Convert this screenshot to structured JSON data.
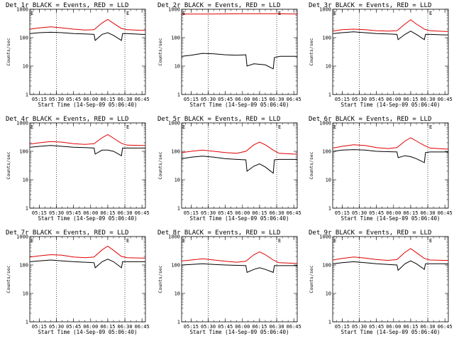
{
  "figure": {
    "background": "#ffffff",
    "series_colors": {
      "events": "#000000",
      "lld": "#e00000"
    }
  },
  "chart_data": [
    {
      "type": "line",
      "title": "Det 1r BLACK = Events, RED = LLD",
      "xlabel": "Start Time (14-Sep-09 05:06:40)",
      "ylabel": "Counts/sec",
      "yscale": "log",
      "ylim": [
        1,
        1000
      ],
      "yticks": [
        "1",
        "10",
        "100",
        "1000"
      ],
      "xticks": [
        "05:15",
        "05:30",
        "05:45",
        "06:00",
        "06:15",
        "06:30",
        "06:45"
      ],
      "markers": [
        "05:30",
        "06:30"
      ],
      "corner_labels": [
        "E",
        "E"
      ],
      "series": [
        {
          "name": "Events",
          "color": "#000000",
          "x": [
            "05:07",
            "05:15",
            "05:25",
            "05:35",
            "05:45",
            "05:55",
            "06:03",
            "06:04",
            "06:10",
            "06:15",
            "06:20",
            "06:27",
            "06:28",
            "06:32",
            "06:45",
            "06:48"
          ],
          "y": [
            140,
            150,
            155,
            150,
            140,
            135,
            130,
            80,
            130,
            150,
            120,
            80,
            140,
            140,
            130,
            130
          ]
        },
        {
          "name": "LLD",
          "color": "#e00000",
          "x": [
            "05:07",
            "05:15",
            "05:25",
            "05:35",
            "05:45",
            "05:55",
            "06:03",
            "06:10",
            "06:15",
            "06:20",
            "06:27",
            "06:32",
            "06:45",
            "06:48"
          ],
          "y": [
            200,
            220,
            240,
            220,
            200,
            185,
            190,
            330,
            440,
            320,
            210,
            190,
            180,
            180
          ]
        }
      ]
    },
    {
      "type": "line",
      "title": "Det 2r BLACK = Events, RED = LLD",
      "xlabel": "Start Time (14-Sep-09 05:06:40)",
      "ylabel": "Counts/sec",
      "yscale": "log",
      "ylim": [
        1,
        1000
      ],
      "yticks": [
        "1",
        "10",
        "100",
        "1000"
      ],
      "xticks": [
        "05:15",
        "05:30",
        "05:45",
        "06:00",
        "06:15",
        "06:30",
        "06:45"
      ],
      "markers": [
        "05:30",
        "06:30"
      ],
      "corner_labels": [
        "E",
        "E"
      ],
      "series": [
        {
          "name": "Events",
          "color": "#000000",
          "x": [
            "05:07",
            "05:15",
            "05:25",
            "05:35",
            "05:45",
            "05:55",
            "06:03",
            "06:04",
            "06:10",
            "06:20",
            "06:27",
            "06:28",
            "06:33",
            "06:45",
            "06:48"
          ],
          "y": [
            22,
            24,
            28,
            27,
            25,
            24,
            25,
            10,
            12,
            11,
            8,
            20,
            22,
            22,
            22
          ]
        },
        {
          "name": "LLD",
          "color": "#e00000",
          "x": [
            "05:07",
            "05:30",
            "06:00",
            "06:30",
            "06:48"
          ],
          "y": [
            680,
            680,
            690,
            690,
            680
          ]
        }
      ]
    },
    {
      "type": "line",
      "title": "Det 3r BLACK = Events, RED = LLD",
      "xlabel": "Start Time (14-Sep-09 05:06:40)",
      "ylabel": "Counts/sec",
      "yscale": "log",
      "ylim": [
        1,
        1000
      ],
      "yticks": [
        "1",
        "10",
        "100",
        "1000"
      ],
      "xticks": [
        "05:15",
        "05:30",
        "05:45",
        "06:00",
        "06:15",
        "06:30",
        "06:45"
      ],
      "markers": [
        "05:30",
        "06:30"
      ],
      "corner_labels": [
        "E",
        "E"
      ],
      "series": [
        {
          "name": "Events",
          "color": "#000000",
          "x": [
            "05:07",
            "05:15",
            "05:25",
            "05:35",
            "05:45",
            "05:55",
            "06:03",
            "06:04",
            "06:10",
            "06:15",
            "06:20",
            "06:27",
            "06:28",
            "06:32",
            "06:45",
            "06:48"
          ],
          "y": [
            140,
            150,
            160,
            150,
            140,
            135,
            130,
            85,
            130,
            170,
            130,
            85,
            130,
            130,
            125,
            125
          ]
        },
        {
          "name": "LLD",
          "color": "#e00000",
          "x": [
            "05:07",
            "05:15",
            "05:25",
            "05:35",
            "05:45",
            "05:55",
            "06:03",
            "06:10",
            "06:15",
            "06:20",
            "06:27",
            "06:32",
            "06:45",
            "06:48"
          ],
          "y": [
            170,
            190,
            200,
            190,
            175,
            170,
            175,
            300,
            430,
            300,
            200,
            175,
            165,
            165
          ]
        }
      ]
    },
    {
      "type": "line",
      "title": "Det 4r BLACK = Events, RED = LLD",
      "xlabel": "Start Time (14-Sep-09 05:06:40)",
      "ylabel": "Counts/sec",
      "yscale": "log",
      "ylim": [
        1,
        1000
      ],
      "yticks": [
        "1",
        "10",
        "100",
        "1000"
      ],
      "xticks": [
        "05:15",
        "05:30",
        "05:45",
        "06:00",
        "06:15",
        "06:30",
        "06:45"
      ],
      "markers": [
        "05:30",
        "06:30"
      ],
      "corner_labels": [
        "E",
        "E"
      ],
      "series": [
        {
          "name": "Events",
          "color": "#000000",
          "x": [
            "05:07",
            "05:15",
            "05:25",
            "05:35",
            "05:45",
            "05:55",
            "06:03",
            "06:04",
            "06:10",
            "06:15",
            "06:20",
            "06:27",
            "06:28",
            "06:32",
            "06:45",
            "06:48"
          ],
          "y": [
            140,
            150,
            160,
            150,
            140,
            135,
            130,
            80,
            110,
            110,
            100,
            70,
            130,
            130,
            130,
            130
          ]
        },
        {
          "name": "LLD",
          "color": "#e00000",
          "x": [
            "05:07",
            "05:15",
            "05:25",
            "05:35",
            "05:45",
            "05:55",
            "06:03",
            "06:10",
            "06:15",
            "06:20",
            "06:27",
            "06:32",
            "06:45",
            "06:48"
          ],
          "y": [
            180,
            200,
            220,
            210,
            185,
            175,
            185,
            300,
            390,
            290,
            190,
            165,
            160,
            160
          ]
        }
      ]
    },
    {
      "type": "line",
      "title": "Det 5r BLACK = Events, RED = LLD",
      "xlabel": "Start Time (14-Sep-09 05:06:40)",
      "ylabel": "Counts/sec",
      "yscale": "log",
      "ylim": [
        1,
        1000
      ],
      "yticks": [
        "1",
        "10",
        "100",
        "1000"
      ],
      "xticks": [
        "05:15",
        "05:30",
        "05:45",
        "06:00",
        "06:15",
        "06:30",
        "06:45"
      ],
      "markers": [
        "05:30",
        "06:30"
      ],
      "corner_labels": [
        "E",
        "E"
      ],
      "series": [
        {
          "name": "Events",
          "color": "#000000",
          "x": [
            "05:07",
            "05:15",
            "05:25",
            "05:35",
            "05:45",
            "05:55",
            "06:03",
            "06:04",
            "06:10",
            "06:15",
            "06:20",
            "06:27",
            "06:28",
            "06:32",
            "06:45",
            "06:48"
          ],
          "y": [
            55,
            62,
            68,
            62,
            55,
            52,
            50,
            20,
            30,
            36,
            28,
            17,
            50,
            52,
            52,
            52
          ]
        },
        {
          "name": "LLD",
          "color": "#e00000",
          "x": [
            "05:07",
            "05:15",
            "05:25",
            "05:35",
            "05:45",
            "05:55",
            "06:03",
            "06:10",
            "06:15",
            "06:20",
            "06:27",
            "06:32",
            "06:45",
            "06:48"
          ],
          "y": [
            90,
            100,
            110,
            100,
            90,
            85,
            100,
            170,
            210,
            170,
            110,
            85,
            80,
            80
          ]
        }
      ]
    },
    {
      "type": "line",
      "title": "Det 6r BLACK = Events, RED = LLD",
      "xlabel": "Start Time (14-Sep-09 05:06:40)",
      "ylabel": "Counts/sec",
      "yscale": "log",
      "ylim": [
        1,
        1000
      ],
      "yticks": [
        "1",
        "10",
        "100",
        "1000"
      ],
      "xticks": [
        "05:15",
        "05:30",
        "05:45",
        "06:00",
        "06:15",
        "06:30",
        "06:45"
      ],
      "markers": [
        "05:30",
        "06:30"
      ],
      "corner_labels": [
        "E",
        "E"
      ],
      "series": [
        {
          "name": "Events",
          "color": "#000000",
          "x": [
            "05:07",
            "05:15",
            "05:25",
            "05:35",
            "05:45",
            "05:55",
            "06:03",
            "06:04",
            "06:10",
            "06:15",
            "06:20",
            "06:27",
            "06:28",
            "06:32",
            "06:45",
            "06:48"
          ],
          "y": [
            100,
            110,
            115,
            110,
            100,
            97,
            95,
            60,
            70,
            65,
            55,
            40,
            90,
            95,
            95,
            95
          ]
        },
        {
          "name": "LLD",
          "color": "#e00000",
          "x": [
            "05:07",
            "05:15",
            "05:25",
            "05:35",
            "05:45",
            "05:55",
            "06:03",
            "06:10",
            "06:15",
            "06:20",
            "06:27",
            "06:32",
            "06:45",
            "06:48"
          ],
          "y": [
            130,
            150,
            170,
            160,
            135,
            125,
            135,
            230,
            300,
            230,
            160,
            130,
            120,
            120
          ]
        }
      ]
    },
    {
      "type": "line",
      "title": "Det 7r BLACK = Events, RED = LLD",
      "xlabel": "Start Time (14-Sep-09 05:06:40)",
      "ylabel": "Counts/sec",
      "yscale": "log",
      "ylim": [
        1,
        1000
      ],
      "yticks": [
        "1",
        "10",
        "100",
        "1000"
      ],
      "xticks": [
        "05:15",
        "05:30",
        "05:45",
        "06:00",
        "06:15",
        "06:30",
        "06:45"
      ],
      "markers": [
        "05:30",
        "06:30"
      ],
      "corner_labels": [
        "E",
        "E"
      ],
      "series": [
        {
          "name": "Events",
          "color": "#000000",
          "x": [
            "05:07",
            "05:15",
            "05:25",
            "05:35",
            "05:45",
            "05:55",
            "06:03",
            "06:04",
            "06:10",
            "06:15",
            "06:20",
            "06:27",
            "06:28",
            "06:32",
            "06:45",
            "06:48"
          ],
          "y": [
            130,
            140,
            150,
            140,
            130,
            125,
            120,
            80,
            130,
            160,
            130,
            80,
            130,
            130,
            130,
            130
          ]
        },
        {
          "name": "LLD",
          "color": "#e00000",
          "x": [
            "05:07",
            "05:15",
            "05:25",
            "05:35",
            "05:45",
            "05:55",
            "06:03",
            "06:10",
            "06:15",
            "06:20",
            "06:27",
            "06:32",
            "06:45",
            "06:48"
          ],
          "y": [
            190,
            210,
            230,
            220,
            190,
            180,
            190,
            340,
            460,
            330,
            200,
            180,
            175,
            175
          ]
        }
      ]
    },
    {
      "type": "line",
      "title": "Det 8r BLACK = Events, RED = LLD",
      "xlabel": "Start Time (14-Sep-09 05:06:40)",
      "ylabel": "Counts/sec",
      "yscale": "log",
      "ylim": [
        1,
        1000
      ],
      "yticks": [
        "1",
        "10",
        "100",
        "1000"
      ],
      "xticks": [
        "05:15",
        "05:30",
        "05:45",
        "06:00",
        "06:15",
        "06:30",
        "06:45"
      ],
      "markers": [
        "05:30",
        "06:30"
      ],
      "corner_labels": [
        "E",
        "E"
      ],
      "series": [
        {
          "name": "Events",
          "color": "#000000",
          "x": [
            "05:07",
            "05:15",
            "05:25",
            "05:35",
            "05:45",
            "05:55",
            "06:03",
            "06:04",
            "06:10",
            "06:15",
            "06:20",
            "06:27",
            "06:28",
            "06:32",
            "06:45",
            "06:48"
          ],
          "y": [
            100,
            105,
            110,
            105,
            100,
            97,
            95,
            55,
            70,
            80,
            70,
            55,
            95,
            95,
            95,
            95
          ]
        },
        {
          "name": "LLD",
          "color": "#e00000",
          "x": [
            "05:07",
            "05:15",
            "05:25",
            "05:35",
            "05:45",
            "05:55",
            "06:03",
            "06:10",
            "06:15",
            "06:20",
            "06:27",
            "06:32",
            "06:45",
            "06:48"
          ],
          "y": [
            140,
            150,
            165,
            150,
            135,
            125,
            135,
            230,
            290,
            230,
            150,
            120,
            115,
            115
          ]
        }
      ]
    },
    {
      "type": "line",
      "title": "Det 9r BLACK = Events, RED = LLD",
      "xlabel": "Start Time (14-Sep-09 05:06:40)",
      "ylabel": "Counts/sec",
      "yscale": "log",
      "ylim": [
        1,
        1000
      ],
      "yticks": [
        "1",
        "10",
        "100",
        "1000"
      ],
      "xticks": [
        "05:15",
        "05:30",
        "05:45",
        "06:00",
        "06:15",
        "06:30",
        "06:45"
      ],
      "markers": [
        "05:30",
        "06:30"
      ],
      "corner_labels": [
        "E",
        "E"
      ],
      "series": [
        {
          "name": "Events",
          "color": "#000000",
          "x": [
            "05:07",
            "05:15",
            "05:25",
            "05:35",
            "05:45",
            "05:55",
            "06:03",
            "06:04",
            "06:10",
            "06:15",
            "06:20",
            "06:27",
            "06:28",
            "06:32",
            "06:45",
            "06:48"
          ],
          "y": [
            110,
            120,
            130,
            120,
            110,
            105,
            100,
            65,
            110,
            140,
            110,
            70,
            110,
            110,
            110,
            110
          ]
        },
        {
          "name": "LLD",
          "color": "#e00000",
          "x": [
            "05:07",
            "05:15",
            "05:25",
            "05:35",
            "05:45",
            "05:55",
            "06:03",
            "06:10",
            "06:15",
            "06:20",
            "06:27",
            "06:32",
            "06:45",
            "06:48"
          ],
          "y": [
            150,
            170,
            190,
            175,
            155,
            145,
            155,
            280,
            380,
            270,
            170,
            150,
            145,
            145
          ]
        }
      ]
    }
  ]
}
